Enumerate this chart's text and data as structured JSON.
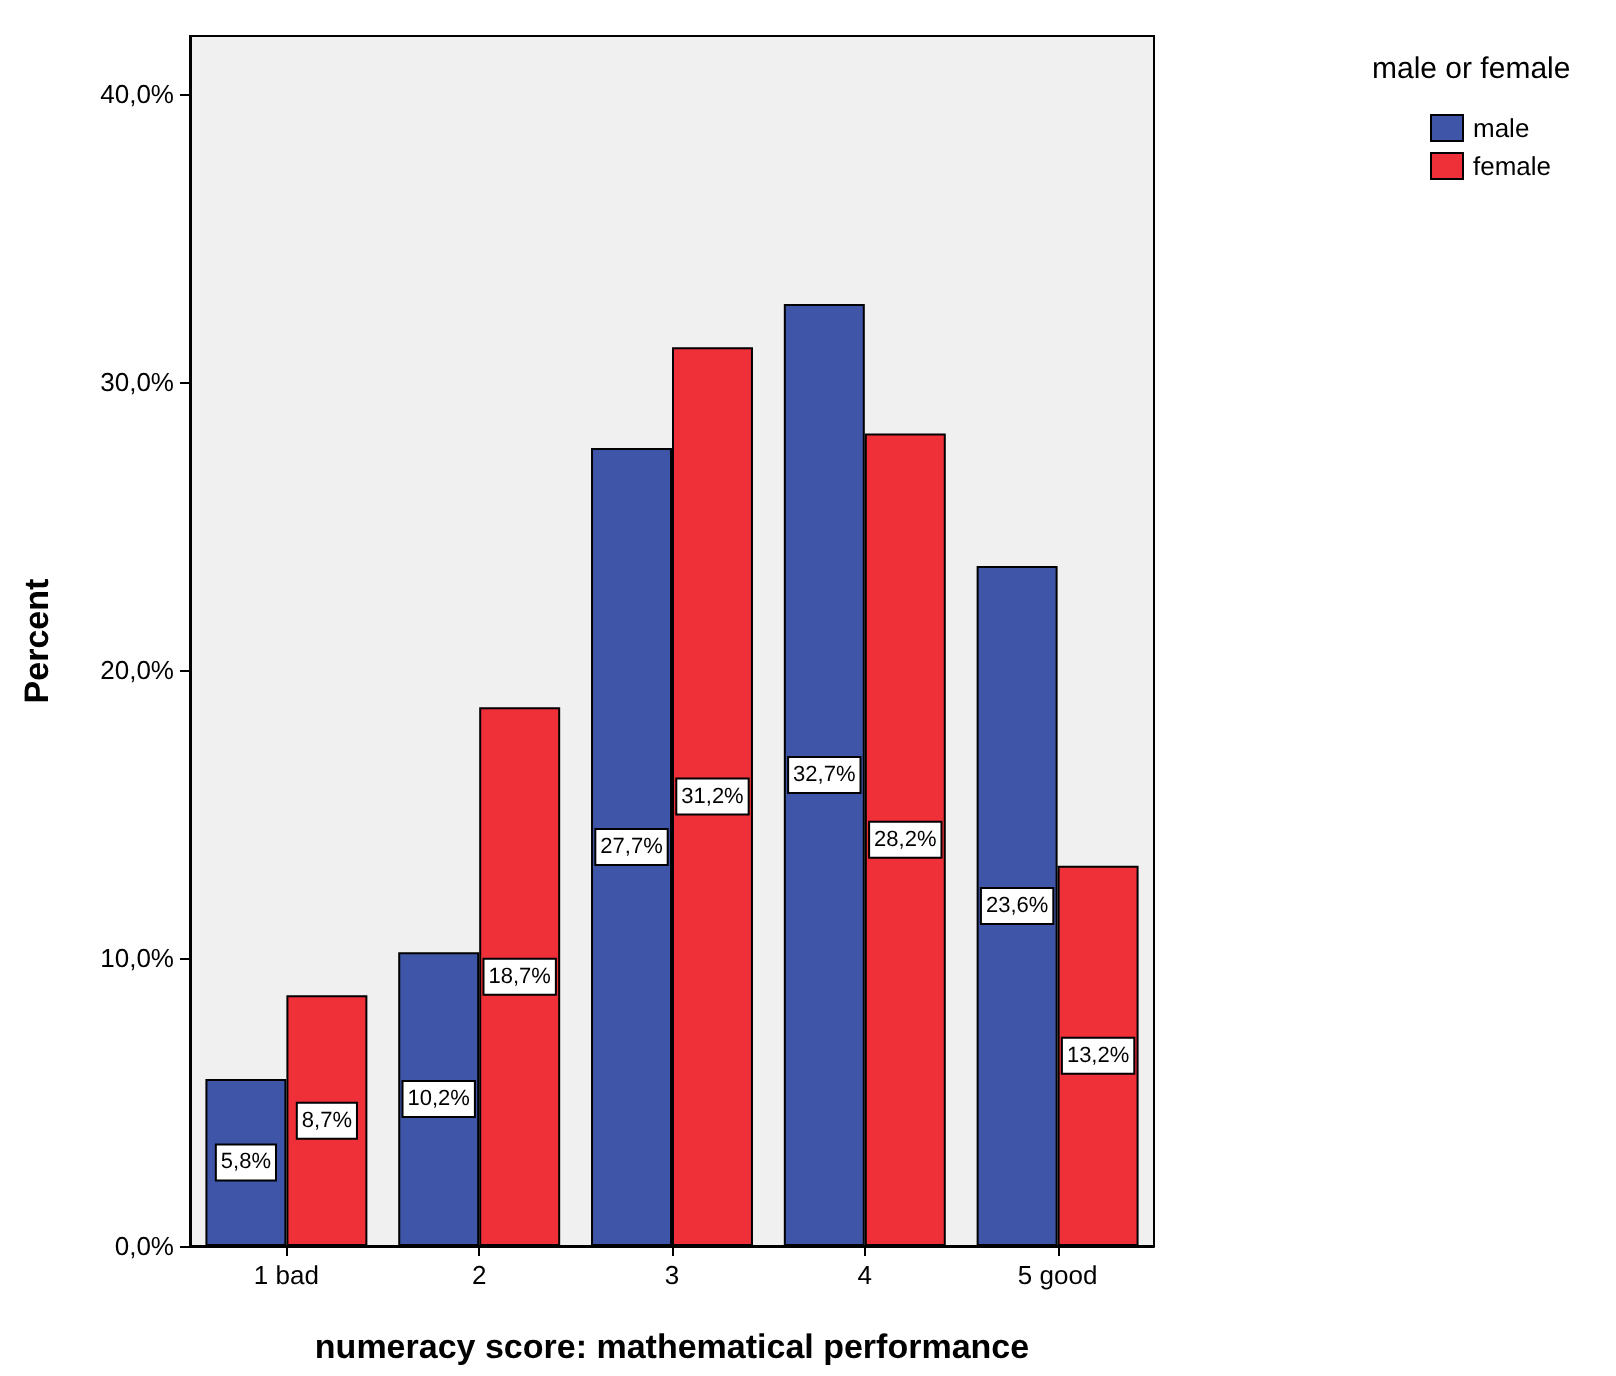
{
  "chart_data": {
    "type": "bar",
    "xlabel": "numeracy score: mathematical performance",
    "ylabel": "Percent",
    "legend_title": "male or female",
    "legend": "top right",
    "categories": [
      "1 bad",
      "2",
      "3",
      "4",
      "5 good"
    ],
    "series": [
      {
        "name": "male",
        "color": "#3f56a8",
        "values": [
          5.8,
          10.2,
          27.7,
          32.7,
          23.6
        ],
        "value_labels": [
          "5,8%",
          "10,2%",
          "27,7%",
          "32,7%",
          "23,6%"
        ]
      },
      {
        "name": "female",
        "color": "#ef3038",
        "values": [
          8.7,
          18.7,
          31.2,
          28.2,
          13.2
        ],
        "value_labels": [
          "8,7%",
          "18,7%",
          "31,2%",
          "28,2%",
          "13,2%"
        ]
      }
    ],
    "ylim": [
      0,
      42
    ],
    "yticks": [
      {
        "value": 0,
        "label": "0,0%"
      },
      {
        "value": 10,
        "label": "10,0%"
      },
      {
        "value": 20,
        "label": "20,0%"
      },
      {
        "value": 30,
        "label": "30,0%"
      },
      {
        "value": 40,
        "label": "40,0%"
      }
    ]
  }
}
